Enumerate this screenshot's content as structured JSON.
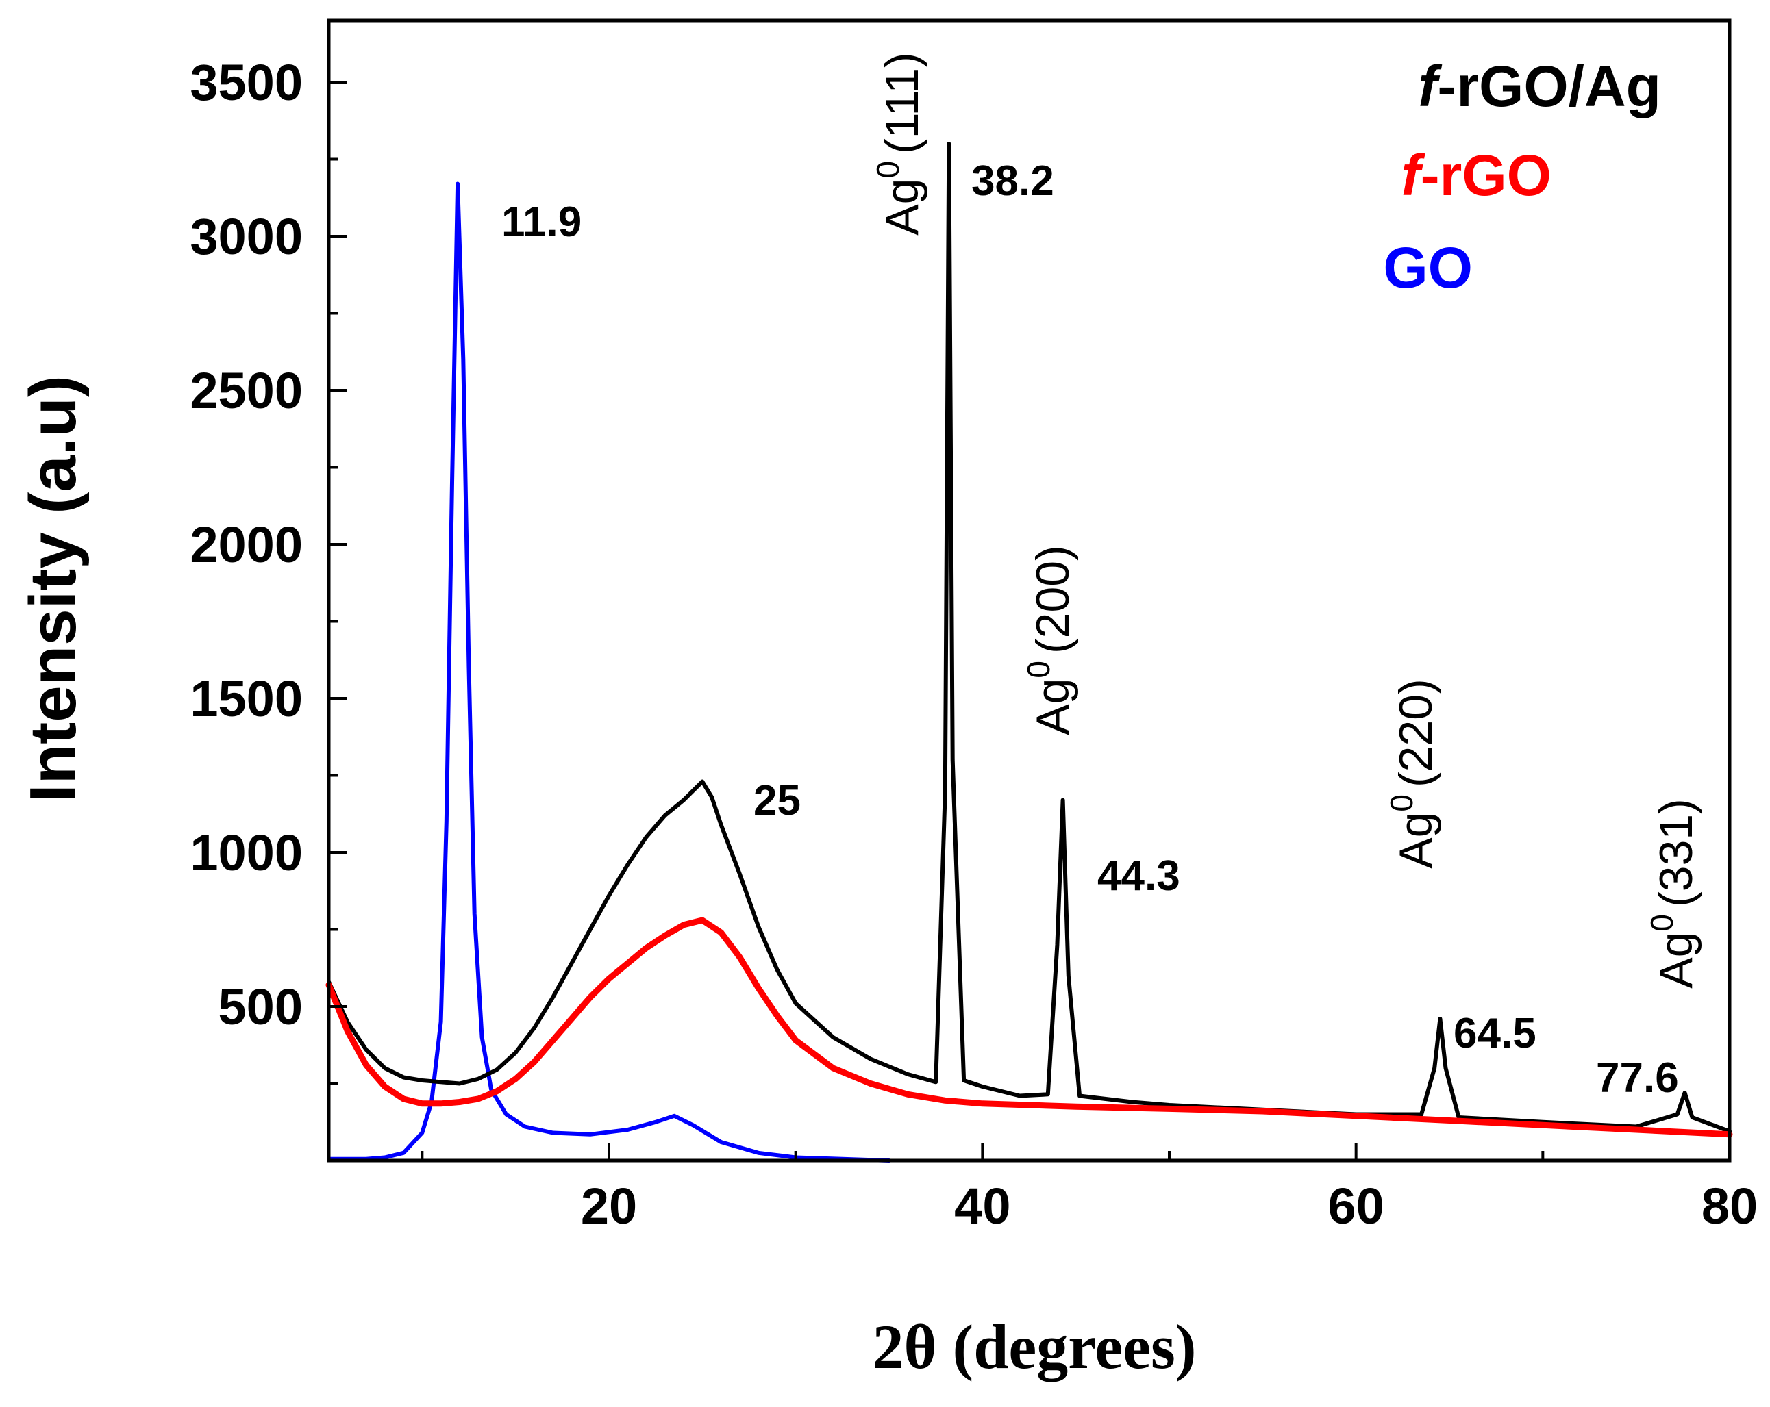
{
  "chart_data": {
    "type": "line",
    "title": "",
    "xlabel": "2θ (degrees)",
    "ylabel": "Intensity (a.u)",
    "xlim": [
      5,
      80
    ],
    "ylim": [
      0,
      3700
    ],
    "xticks": [
      20,
      40,
      60,
      80
    ],
    "xtick_labels": [
      "20",
      "40",
      "60",
      "80"
    ],
    "yticks": [
      500,
      1000,
      1500,
      2000,
      2500,
      3000,
      3500
    ],
    "ytick_labels": [
      "500",
      "1000",
      "1500",
      "2000",
      "2500",
      "3000",
      "3500"
    ],
    "grid": false,
    "legend_position": "top-right",
    "legend": [
      {
        "series": "f-rGO/Ag",
        "italic_part": "f",
        "rest": "-rGO/Ag",
        "color": "#000000"
      },
      {
        "series": "f-rGO",
        "italic_part": "f",
        "rest": "-rGO",
        "color": "#ff0000"
      },
      {
        "series": "GO",
        "italic_part": "",
        "rest": "GO",
        "color": "#0000ff"
      }
    ],
    "series": [
      {
        "name": "f-rGO/Ag",
        "color": "#000000",
        "x": [
          5,
          6,
          7,
          8,
          9,
          10,
          11,
          12,
          13,
          14,
          15,
          16,
          17,
          18,
          19,
          20,
          21,
          22,
          23,
          24,
          24.5,
          25,
          25.5,
          26,
          27,
          28,
          29,
          30,
          32,
          34,
          36,
          37.5,
          38,
          38.2,
          38.4,
          39,
          40,
          42,
          43.5,
          44.0,
          44.3,
          44.6,
          45.2,
          48,
          50,
          55,
          60,
          63.5,
          64.2,
          64.5,
          64.8,
          65.5,
          70,
          75,
          77.2,
          77.6,
          78.0,
          80
        ],
        "y": [
          580,
          450,
          360,
          300,
          270,
          260,
          255,
          250,
          265,
          295,
          350,
          430,
          530,
          640,
          750,
          860,
          960,
          1050,
          1120,
          1170,
          1200,
          1230,
          1180,
          1090,
          930,
          760,
          620,
          510,
          400,
          330,
          280,
          255,
          1200,
          3300,
          1300,
          260,
          240,
          210,
          215,
          700,
          1170,
          600,
          210,
          190,
          180,
          165,
          150,
          150,
          300,
          460,
          300,
          140,
          125,
          110,
          150,
          220,
          140,
          95
        ]
      },
      {
        "name": "f-rGO",
        "color": "#ff0000",
        "x": [
          5,
          6,
          7,
          8,
          9,
          10,
          11,
          12,
          13,
          14,
          15,
          16,
          17,
          18,
          19,
          20,
          21,
          22,
          23,
          24,
          25,
          26,
          27,
          28,
          29,
          30,
          32,
          34,
          36,
          38,
          40,
          45,
          50,
          55,
          60,
          65,
          70,
          75,
          80
        ],
        "y": [
          570,
          420,
          310,
          240,
          200,
          185,
          185,
          190,
          200,
          225,
          265,
          320,
          390,
          460,
          530,
          590,
          640,
          690,
          730,
          765,
          780,
          740,
          660,
          560,
          470,
          390,
          300,
          250,
          215,
          195,
          185,
          175,
          168,
          160,
          145,
          130,
          115,
          100,
          85
        ]
      },
      {
        "name": "GO",
        "color": "#0000ff",
        "x": [
          5,
          7,
          8,
          9,
          10,
          10.5,
          11,
          11.3,
          11.6,
          11.9,
          12.2,
          12.5,
          12.8,
          13.2,
          13.7,
          14.5,
          15.5,
          17,
          19,
          21,
          22.5,
          23.5,
          24.5,
          26,
          28,
          30,
          35
        ],
        "y": [
          5,
          5,
          10,
          25,
          90,
          190,
          450,
          1100,
          2200,
          3170,
          2600,
          1600,
          800,
          400,
          230,
          150,
          110,
          90,
          85,
          100,
          125,
          145,
          115,
          60,
          25,
          10,
          0
        ]
      }
    ],
    "annotations": [
      {
        "text": "11.9",
        "x": 11.9,
        "y": 3170
      },
      {
        "text": "25",
        "x": 25,
        "y": 1230
      },
      {
        "text": "38.2",
        "x": 38.2,
        "y": 3300
      },
      {
        "text": "44.3",
        "x": 44.3,
        "y": 1170
      },
      {
        "text": "64.5",
        "x": 64.5,
        "y": 460
      },
      {
        "text": "77.6",
        "x": 77.6,
        "y": 220
      }
    ],
    "peak_labels": [
      {
        "prefix": "Ag",
        "sup": "0",
        "hkl": "(111)"
      },
      {
        "prefix": "Ag",
        "sup": "0",
        "hkl": "(200)"
      },
      {
        "prefix": "Ag",
        "sup": "0",
        "hkl": "(220)"
      },
      {
        "prefix": "Ag",
        "sup": "0",
        "hkl": "(331)"
      }
    ]
  }
}
